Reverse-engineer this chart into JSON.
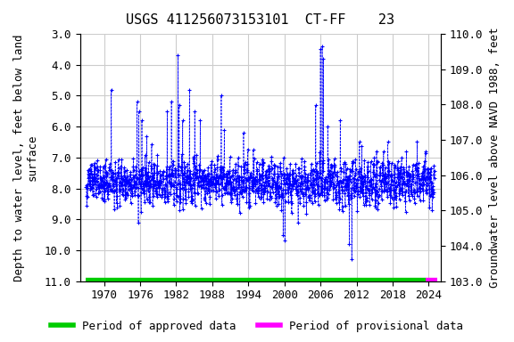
{
  "title": "USGS 411256073153101  CT-FF    23",
  "ylabel_left": "Depth to water level, feet below land\nsurface",
  "ylabel_right": "Groundwater level above NAVD 1988, feet",
  "xlabel": "",
  "ylim_left": [
    11.0,
    3.0
  ],
  "ylim_right": [
    103.0,
    110.0
  ],
  "xlim": [
    1966,
    2026
  ],
  "yticks_left": [
    3.0,
    4.0,
    5.0,
    6.0,
    7.0,
    8.0,
    9.0,
    10.0,
    11.0
  ],
  "yticks_right": [
    103.0,
    104.0,
    105.0,
    106.0,
    107.0,
    108.0,
    109.0,
    110.0
  ],
  "xticks": [
    1970,
    1976,
    1982,
    1988,
    1994,
    2000,
    2006,
    2012,
    2018,
    2024
  ],
  "data_color": "#0000FF",
  "approved_color": "#00CC00",
  "provisional_color": "#FF00FF",
  "approved_start": 1967.0,
  "approved_end": 2023.5,
  "provisional_start": 2023.5,
  "provisional_end": 2025.5,
  "bar_y": 11.0,
  "background_color": "#ffffff",
  "grid_color": "#cccccc",
  "title_fontsize": 11,
  "label_fontsize": 9,
  "tick_fontsize": 9,
  "legend_fontsize": 9
}
